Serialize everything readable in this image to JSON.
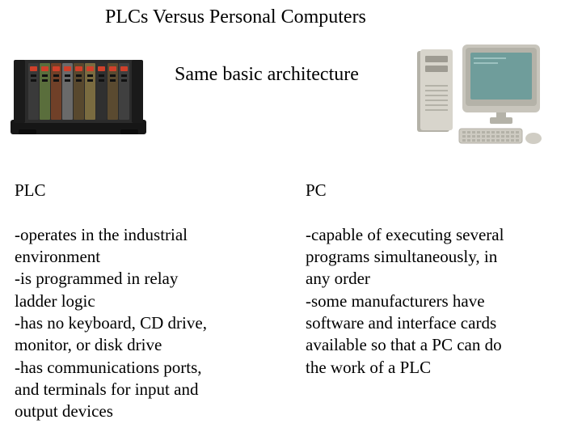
{
  "title": "PLCs Versus Personal Computers",
  "subtitle": "Same basic architecture",
  "plc": {
    "heading": "PLC",
    "body": "-operates in the industrial\n environment\n-is programmed in relay\n ladder logic\n-has no keyboard, CD drive,\n monitor, or disk drive\n-has communications ports,\n and terminals for input and\n output devices"
  },
  "pc": {
    "heading": "PC",
    "body": "-capable of executing several\n programs simultaneously, in\n any order\n-some manufacturers have\n software and interface cards\n available so that a PC can do\n the work of a PLC"
  },
  "plc_image": {
    "rack_color": "#2b2b2b",
    "slot_colors": [
      "#3a3a3a",
      "#5a6e3c",
      "#704028",
      "#6a6a6a",
      "#58482e",
      "#7a6b40",
      "#303030",
      "#5a4a30",
      "#404040"
    ],
    "led_color": "#d0402a",
    "base_color": "#161616"
  },
  "pc_image": {
    "case_color": "#d8d5cc",
    "case_shadow": "#b4b2a8",
    "bezel_color": "#c8c5bc",
    "screen_color": "#6f9d9b",
    "keyboard_color": "#cecbc2",
    "mouse_color": "#d0cdc4",
    "drive_color": "#9e9b92"
  },
  "colors": {
    "bg": "#ffffff",
    "text": "#000000"
  }
}
